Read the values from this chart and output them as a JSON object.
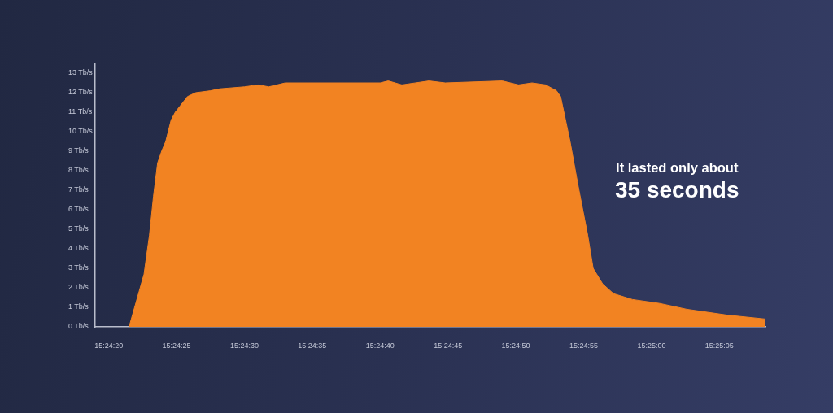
{
  "chart_data": {
    "type": "area",
    "annotations": [
      "It lasted only about",
      "35 seconds"
    ],
    "x": [
      15.405972,
      15.406278,
      15.406389,
      15.406472,
      15.406556,
      15.406639,
      15.406722,
      15.406833,
      15.406917,
      15.407167,
      15.407333,
      15.407639,
      15.407833,
      15.408333,
      15.408611,
      15.408833,
      15.409167,
      15.411111,
      15.411278,
      15.411556,
      15.412111,
      15.412444,
      15.413611,
      15.413944,
      15.414222,
      15.4145,
      15.414722,
      15.414806,
      15.415,
      15.415167,
      15.415361,
      15.415472,
      15.415667,
      15.415889,
      15.416278,
      15.416833,
      15.417389,
      15.418222,
      15.419
    ],
    "values": [
      0,
      2.7,
      4.7,
      6.7,
      8.4,
      9.0,
      9.5,
      10.6,
      11.0,
      11.8,
      12.0,
      12.1,
      12.2,
      12.3,
      12.4,
      12.3,
      12.5,
      12.5,
      12.6,
      12.4,
      12.6,
      12.5,
      12.6,
      12.4,
      12.5,
      12.4,
      12.1,
      11.8,
      9.5,
      7.2,
      4.7,
      3.0,
      2.2,
      1.7,
      1.4,
      1.2,
      0.9,
      0.6,
      0.4
    ],
    "color": "#f28322",
    "xlim": [
      15.405278,
      15.419
    ],
    "xticks": [
      {
        "value": 15.405556,
        "label": "15:24:20"
      },
      {
        "value": 15.406944,
        "label": "15:24:25"
      },
      {
        "value": 15.408333,
        "label": "15:24:30"
      },
      {
        "value": 15.409722,
        "label": "15:24:35"
      },
      {
        "value": 15.411111,
        "label": "15:24:40"
      },
      {
        "value": 15.4125,
        "label": "15:24:45"
      },
      {
        "value": 15.413889,
        "label": "15:24:50"
      },
      {
        "value": 15.415278,
        "label": "15:24:55"
      },
      {
        "value": 15.416667,
        "label": "15:25:00"
      },
      {
        "value": 15.418056,
        "label": "15:25:05"
      }
    ],
    "ylim": [
      0,
      13.5
    ],
    "yticks": [
      {
        "value": 0,
        "label": "0 Tb/s"
      },
      {
        "value": 1,
        "label": "1 Tb/s"
      },
      {
        "value": 2,
        "label": "2 Tb/s"
      },
      {
        "value": 3,
        "label": "3 Tb/s"
      },
      {
        "value": 4,
        "label": "4 Tb/s"
      },
      {
        "value": 5,
        "label": "5 Tb/s"
      },
      {
        "value": 6,
        "label": "6 Tb/s"
      },
      {
        "value": 7,
        "label": "7 Tb/s"
      },
      {
        "value": 8,
        "label": "8 Tb/s"
      },
      {
        "value": 9,
        "label": "9 Tb/s"
      },
      {
        "value": 10,
        "label": "10 Tb/s"
      },
      {
        "value": 11,
        "label": "11 Tb/s"
      },
      {
        "value": 12,
        "label": "12 Tb/s"
      },
      {
        "value": 13,
        "label": "13 Tb/s"
      }
    ]
  }
}
